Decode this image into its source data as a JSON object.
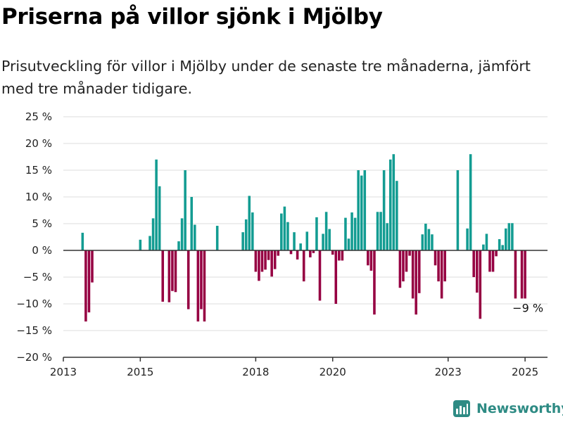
{
  "title": "Priserna på villor sjönk i Mjölby",
  "subtitle": "Prisutveckling för villor i Mjölby under de senaste tre månaderna, jämfört med tre månader tidigare.",
  "brand": "Newsworthy",
  "colors": {
    "positive": "#139c92",
    "negative": "#960042",
    "axis": "#333333",
    "grid": "#dddddd",
    "brand": "#2e8b84"
  },
  "chart_data": {
    "type": "bar",
    "ylim": [
      -20,
      25
    ],
    "yticks": [
      -20,
      -15,
      -10,
      -5,
      0,
      5,
      10,
      15,
      20,
      25
    ],
    "ytick_labels": [
      "−20 %",
      "−15 %",
      "−10 %",
      "−5 %",
      "0 %",
      "5 %",
      "10 %",
      "15 %",
      "20 %",
      "25 %"
    ],
    "xlim": [
      "2013-01",
      "2025-08"
    ],
    "xticks": [
      "2013-01",
      "2015-01",
      "2018-01",
      "2020-01",
      "2023-01",
      "2025-01"
    ],
    "xtick_labels": [
      "2013",
      "2015",
      "2018",
      "2020",
      "2023",
      "2025"
    ],
    "grid": true,
    "annotations": [
      {
        "x": "2025-01",
        "y": -9,
        "text": "−9 %"
      }
    ],
    "x": [
      "2013-07",
      "2013-08",
      "2013-09",
      "2013-10",
      "2015-01",
      "2015-04",
      "2015-05",
      "2015-06",
      "2015-07",
      "2015-08",
      "2015-10",
      "2015-11",
      "2015-12",
      "2016-01",
      "2016-02",
      "2016-03",
      "2016-04",
      "2016-05",
      "2016-06",
      "2016-07",
      "2016-08",
      "2016-09",
      "2017-01",
      "2017-09",
      "2017-10",
      "2017-11",
      "2017-12",
      "2018-01",
      "2018-02",
      "2018-03",
      "2018-04",
      "2018-05",
      "2018-06",
      "2018-07",
      "2018-08",
      "2018-09",
      "2018-10",
      "2018-11",
      "2018-12",
      "2019-01",
      "2019-02",
      "2019-03",
      "2019-04",
      "2019-05",
      "2019-06",
      "2019-07",
      "2019-08",
      "2019-09",
      "2019-10",
      "2019-11",
      "2019-12",
      "2020-01",
      "2020-02",
      "2020-03",
      "2020-04",
      "2020-05",
      "2020-06",
      "2020-07",
      "2020-08",
      "2020-09",
      "2020-10",
      "2020-11",
      "2020-12",
      "2021-01",
      "2021-02",
      "2021-03",
      "2021-04",
      "2021-05",
      "2021-06",
      "2021-07",
      "2021-08",
      "2021-09",
      "2021-10",
      "2021-11",
      "2021-12",
      "2022-01",
      "2022-02",
      "2022-03",
      "2022-04",
      "2022-05",
      "2022-06",
      "2022-07",
      "2022-08",
      "2022-09",
      "2022-10",
      "2022-11",
      "2022-12",
      "2023-04",
      "2023-07",
      "2023-08",
      "2023-09",
      "2023-10",
      "2023-11",
      "2023-12",
      "2024-01",
      "2024-02",
      "2024-03",
      "2024-04",
      "2024-05",
      "2024-06",
      "2024-07",
      "2024-08",
      "2024-09",
      "2024-10",
      "2024-12",
      "2025-01"
    ],
    "values": [
      3.3,
      -13.3,
      -11.6,
      -6,
      2,
      2.7,
      6,
      17,
      12,
      -9.6,
      -9.7,
      -7.6,
      -7.8,
      1.7,
      6,
      15,
      -11,
      10,
      4.8,
      -13.3,
      -11,
      -13.3,
      4.6,
      3.4,
      5.8,
      10.2,
      7.1,
      -4,
      -5.7,
      -4,
      -3.6,
      -1.8,
      -4.9,
      -3.5,
      -1,
      6.9,
      8.2,
      5.3,
      -0.7,
      3.4,
      -1.7,
      1.3,
      -5.8,
      3.5,
      -1.3,
      -0.5,
      6.2,
      -9.4,
      3.1,
      7.2,
      4,
      -0.8,
      -10,
      -1.9,
      -1.9,
      6.1,
      2.2,
      7.1,
      6.1,
      15,
      14,
      15,
      -2.8,
      -3.8,
      -12,
      7.2,
      7.2,
      15,
      5.1,
      17,
      18,
      13,
      -7,
      -5.8,
      -4,
      -1,
      -9,
      -12,
      -8,
      3,
      5,
      4,
      3,
      -2.8,
      -5.8,
      -9,
      -5.8,
      15,
      4.1,
      18,
      -5,
      -7.9,
      -12.8,
      1.1,
      3.1,
      -4,
      -4,
      -1.1,
      2.1,
      1,
      4.1,
      5.1,
      5.1,
      -9,
      -9,
      -9
    ]
  }
}
